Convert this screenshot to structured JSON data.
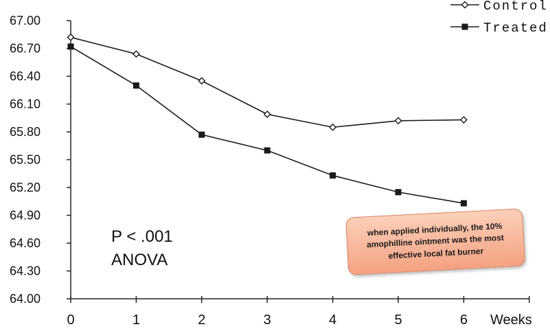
{
  "chart_data": {
    "type": "line",
    "x": [
      0,
      1,
      2,
      3,
      4,
      5,
      6
    ],
    "xlim": [
      0,
      7
    ],
    "ylim": [
      64.0,
      67.0
    ],
    "y_ticks": [
      "64.00",
      "64.30",
      "64.60",
      "64.90",
      "65.20",
      "65.50",
      "65.80",
      "66.10",
      "66.40",
      "66.70",
      "67.00"
    ],
    "x_tick_labels": [
      "0",
      "1",
      "2",
      "3",
      "4",
      "5",
      "6"
    ],
    "xlabel": "Weeks",
    "legend_position": "top-right",
    "series": [
      {
        "name": "Control",
        "marker": "diamond",
        "values": [
          66.82,
          66.64,
          66.35,
          65.99,
          65.85,
          65.92,
          65.93
        ]
      },
      {
        "name": "Treated",
        "marker": "square",
        "values": [
          66.72,
          66.3,
          65.77,
          65.6,
          65.33,
          65.15,
          65.03
        ]
      }
    ],
    "annotations": {
      "stat_line1": "P < .001",
      "stat_line2": "ANOVA",
      "note": "when applied individually, the 10% amophilline ointment was the most effective local fat burner"
    }
  }
}
